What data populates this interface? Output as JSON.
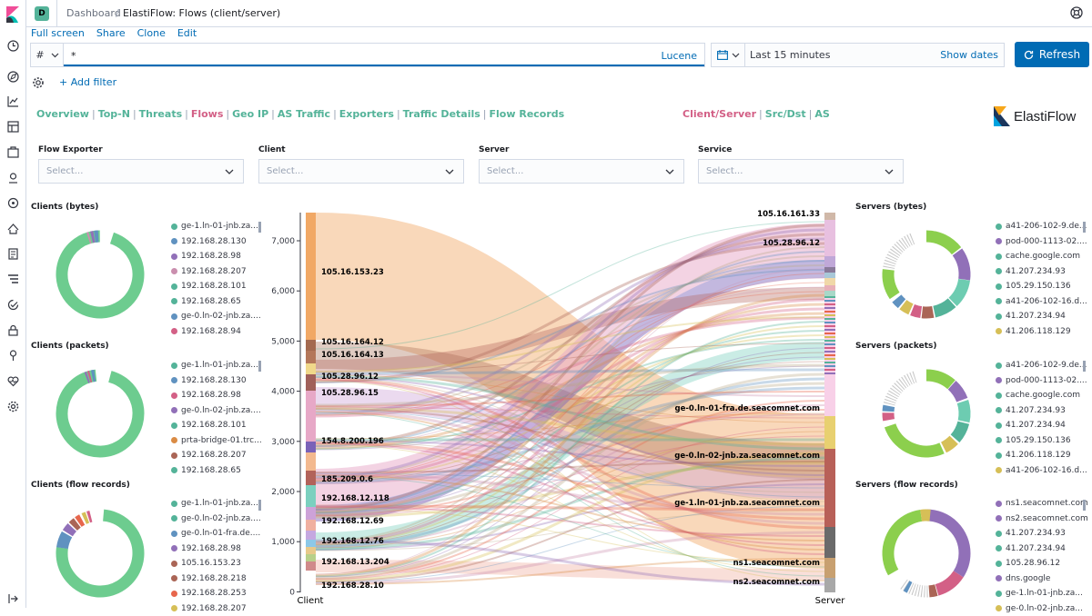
{
  "header": {
    "avatar": "D",
    "breadcrumb_root": "Dashboard",
    "breadcrumb_current": "ElastiFlow: Flows (client/server)"
  },
  "actions": [
    "Full screen",
    "Share",
    "Clone",
    "Edit"
  ],
  "query": {
    "language_symbol": "#",
    "value": "*",
    "language_label": "Lucene"
  },
  "time": {
    "range": "Last 15 minutes",
    "show_dates": "Show dates",
    "refresh": "Refresh"
  },
  "filter": {
    "add_label": "+ Add filter"
  },
  "nav": {
    "left": [
      "Overview",
      "Top-N",
      "Threats",
      "Flows",
      "Geo IP",
      "AS Traffic",
      "Exporters",
      "Traffic Details",
      "Flow Records"
    ],
    "left_active": "Flows",
    "right": [
      "Client/Server",
      "Src/Dst",
      "AS"
    ],
    "right_active": "Client/Server"
  },
  "brand": {
    "name": "ElastiFlow"
  },
  "controls": [
    {
      "label": "Flow Exporter",
      "placeholder": "Select..."
    },
    {
      "label": "Client",
      "placeholder": "Select..."
    },
    {
      "label": "Server",
      "placeholder": "Select..."
    },
    {
      "label": "Service",
      "placeholder": "Select..."
    }
  ],
  "panels": {
    "clients_bytes": {
      "title": "Clients (bytes)",
      "legend": [
        {
          "label": "ge-1.ln-01-jnb.za....",
          "color": "#54b399"
        },
        {
          "label": "192.168.28.130",
          "color": "#6092c0"
        },
        {
          "label": "192.168.28.98",
          "color": "#9170b8"
        },
        {
          "label": "192.168.28.207",
          "color": "#ca8eae"
        },
        {
          "label": "192.168.28.101",
          "color": "#54b399"
        },
        {
          "label": "192.168.28.65",
          "color": "#54b399"
        },
        {
          "label": "ge-0.ln-02-jnb.za....",
          "color": "#6092c0"
        },
        {
          "label": "192.168.28.94",
          "color": "#d36086"
        }
      ]
    },
    "clients_packets": {
      "title": "Clients (packets)",
      "legend": [
        {
          "label": "ge-1.ln-01-jnb.za....",
          "color": "#54b399"
        },
        {
          "label": "192.168.28.130",
          "color": "#6092c0"
        },
        {
          "label": "192.168.28.98",
          "color": "#d36086"
        },
        {
          "label": "ge-0.ln-02-jnb.za....",
          "color": "#9170b8"
        },
        {
          "label": "192.168.28.101",
          "color": "#54b399"
        },
        {
          "label": "prta-bridge-01.trc...",
          "color": "#da8b45"
        },
        {
          "label": "192.168.28.207",
          "color": "#aa6556"
        },
        {
          "label": "192.168.28.65",
          "color": "#54b399"
        }
      ]
    },
    "clients_flows": {
      "title": "Clients (flow records)",
      "legend": [
        {
          "label": "ge-1.ln-01-jnb.za....",
          "color": "#54b399"
        },
        {
          "label": "ge-0.ln-02-jnb.za....",
          "color": "#54b399"
        },
        {
          "label": "ge-0.ln-01-fra.de....",
          "color": "#6092c0"
        },
        {
          "label": "192.168.28.98",
          "color": "#9170b8"
        },
        {
          "label": "105.16.153.23",
          "color": "#aa6556"
        },
        {
          "label": "192.168.28.218",
          "color": "#aa6556"
        },
        {
          "label": "192.168.28.253",
          "color": "#e7664c"
        },
        {
          "label": "192.168.28.207",
          "color": "#d6bf57"
        }
      ]
    },
    "servers_bytes": {
      "title": "Servers (bytes)",
      "legend": [
        {
          "label": "a41-206-102-9.de...",
          "color": "#54b399"
        },
        {
          "label": "pod-000-1113-02....",
          "color": "#9170b8"
        },
        {
          "label": "cache.google.com",
          "color": "#54b399"
        },
        {
          "label": "41.207.234.93",
          "color": "#54b399"
        },
        {
          "label": "105.29.150.136",
          "color": "#54b399"
        },
        {
          "label": "a41-206-102-16.d...",
          "color": "#54b399"
        },
        {
          "label": "41.207.234.94",
          "color": "#54b399"
        },
        {
          "label": "41.206.118.129",
          "color": "#d6bf57"
        }
      ]
    },
    "servers_packets": {
      "title": "Servers (packets)",
      "legend": [
        {
          "label": "a41-206-102-9.de...",
          "color": "#54b399"
        },
        {
          "label": "pod-000-1113-02....",
          "color": "#9170b8"
        },
        {
          "label": "cache.google.com",
          "color": "#54b399"
        },
        {
          "label": "41.207.234.93",
          "color": "#54b399"
        },
        {
          "label": "41.207.234.94",
          "color": "#54b399"
        },
        {
          "label": "105.29.150.136",
          "color": "#54b399"
        },
        {
          "label": "41.206.118.129",
          "color": "#54b399"
        },
        {
          "label": "a41-206-102-16.d...",
          "color": "#d6bf57"
        }
      ]
    },
    "servers_flows": {
      "title": "Servers (flow records)",
      "legend": [
        {
          "label": "ns1.seacomnet.com",
          "color": "#9170b8"
        },
        {
          "label": "ns2.seacomnet.com",
          "color": "#9170b8"
        },
        {
          "label": "41.207.234.93",
          "color": "#54b399"
        },
        {
          "label": "41.207.234.94",
          "color": "#54b399"
        },
        {
          "label": "105.28.96.12",
          "color": "#54b399"
        },
        {
          "label": "dns.google",
          "color": "#9170b8"
        },
        {
          "label": "ge-1.ln-01-jnb.za...",
          "color": "#54b399"
        },
        {
          "label": "ge-0.ln-02-jnb.za...",
          "color": "#d6bf57"
        }
      ]
    }
  },
  "sankey": {
    "axis_ticks": [
      "7,000",
      "6,000",
      "5,000",
      "4,000",
      "3,000",
      "2,000",
      "1,000",
      "0"
    ],
    "left_axis_label": "Client",
    "right_axis_label": "Server",
    "client_nodes": [
      "105.16.153.23",
      "105.16.164.12",
      "105.16.164.13",
      "105.28.96.12",
      "105.28.96.15",
      "154.8.200.196",
      "185.209.0.6",
      "192.168.12.118",
      "192.168.12.69",
      "192.168.12.76",
      "192.168.13.204",
      "192.168.28.10"
    ],
    "server_nodes": [
      "105.16.161.33",
      "105.28.96.12",
      "ge-0.ln-01-fra.de.seacomnet.com",
      "ge-0.ln-02-jnb.za.seacomnet.com",
      "ge-1.ln-01-jnb.za.seacomnet.com",
      "ns1.seacomnet.com",
      "ns2.seacomnet.com"
    ]
  },
  "colors": {
    "accent": "#006bb4",
    "nav_link": "#54b399",
    "nav_active": "#d36086"
  }
}
